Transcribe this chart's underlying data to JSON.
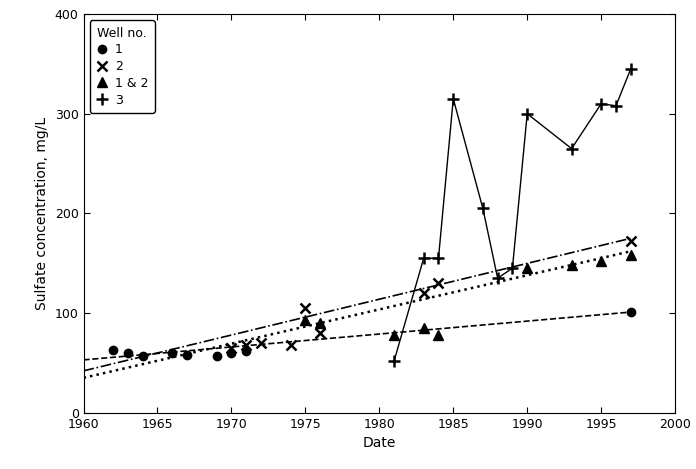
{
  "title": "",
  "xlabel": "Date",
  "ylabel": "Sulfate concentration, mg/L",
  "xlim": [
    1960,
    2000
  ],
  "ylim": [
    0,
    400
  ],
  "xticks": [
    1960,
    1965,
    1970,
    1975,
    1980,
    1985,
    1990,
    1995,
    2000
  ],
  "yticks": [
    0,
    100,
    200,
    300,
    400
  ],
  "well1_x": [
    1962,
    1963,
    1964,
    1966,
    1967,
    1969,
    1970,
    1971,
    1997
  ],
  "well1_y": [
    63,
    60,
    57,
    60,
    58,
    57,
    60,
    62,
    101
  ],
  "well2_x": [
    1970,
    1971,
    1972,
    1974,
    1975,
    1976,
    1983,
    1984,
    1997
  ],
  "well2_y": [
    65,
    68,
    70,
    68,
    105,
    80,
    120,
    130,
    172
  ],
  "well12_x": [
    1975,
    1976,
    1981,
    1983,
    1984,
    1990,
    1993,
    1995,
    1997
  ],
  "well12_y": [
    93,
    90,
    78,
    85,
    78,
    145,
    148,
    152,
    158
  ],
  "well3_x": [
    1981,
    1983,
    1984,
    1985,
    1987,
    1988,
    1989,
    1990,
    1993,
    1995,
    1996,
    1997
  ],
  "well3_y": [
    52,
    155,
    155,
    315,
    205,
    135,
    145,
    300,
    265,
    310,
    308,
    345
  ],
  "well1_trend_x": [
    1960,
    1997
  ],
  "well1_trend_y": [
    53,
    101
  ],
  "well2_trend_x": [
    1960,
    1997
  ],
  "well2_trend_y": [
    42,
    175
  ],
  "well12_trend_x": [
    1960,
    1997
  ],
  "well12_trend_y": [
    35,
    162
  ],
  "legend_title": "Well no.",
  "legend_labels": [
    "1",
    "2",
    "1 & 2",
    "3"
  ],
  "background_color": "#ffffff",
  "line_color": "#000000"
}
